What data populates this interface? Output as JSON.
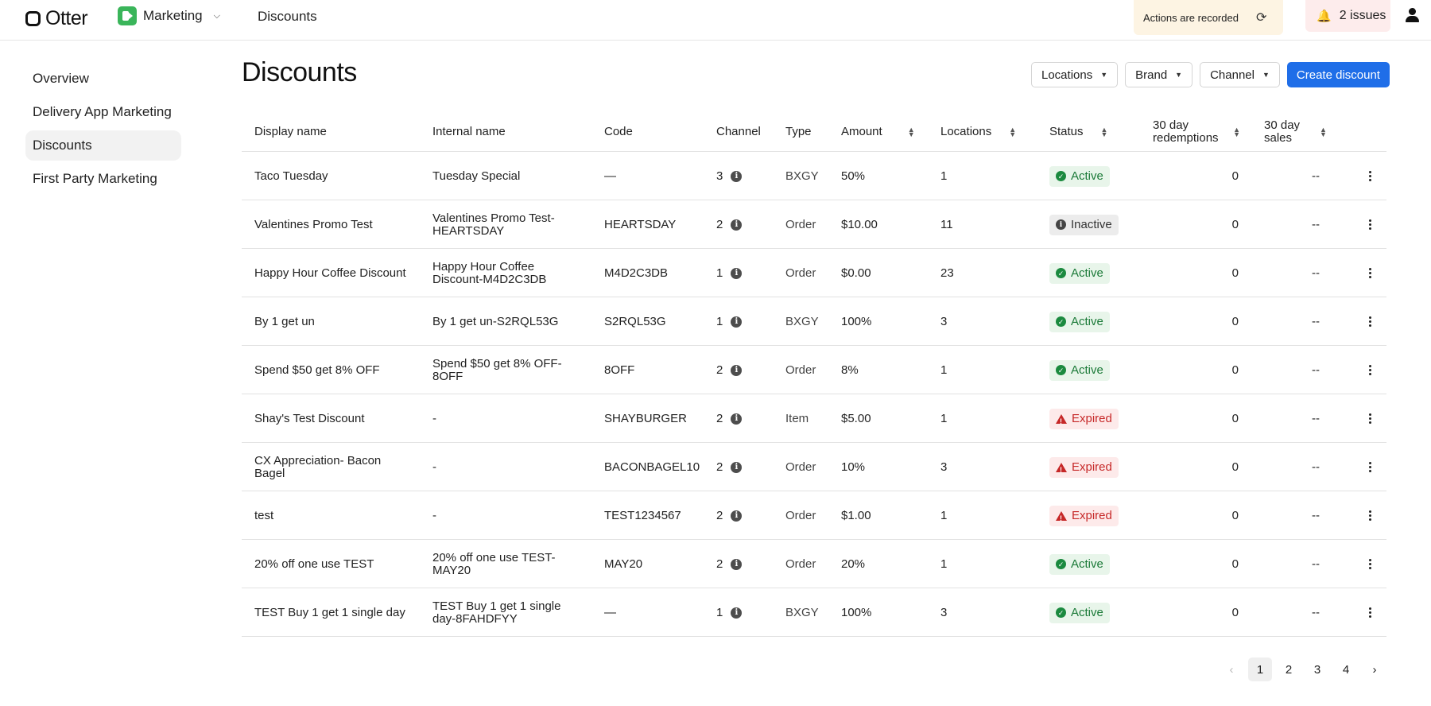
{
  "topbar": {
    "logo_text": "Otter",
    "app_name": "Marketing",
    "page_breadcrumb": "Discounts",
    "recorded_label": "Actions are recorded",
    "issues_label": "2 issues"
  },
  "sidebar": {
    "items": [
      {
        "label": "Overview"
      },
      {
        "label": "Delivery App Marketing"
      },
      {
        "label": "Discounts",
        "active": true
      },
      {
        "label": "First Party Marketing"
      }
    ]
  },
  "main": {
    "title": "Discounts",
    "filters": [
      "Locations",
      "Brand",
      "Channel"
    ],
    "create_label": "Create discount"
  },
  "table": {
    "headers": {
      "display_name": "Display name",
      "internal_name": "Internal name",
      "code": "Code",
      "channel": "Channel",
      "type": "Type",
      "amount": "Amount",
      "locations": "Locations",
      "status": "Status",
      "redemptions": "30 day redemptions",
      "sales": "30 day sales"
    },
    "rows": [
      {
        "display": "Taco Tuesday",
        "internal": "Tuesday Special",
        "code": "—",
        "channel": "3",
        "type": "BXGY",
        "amount": "50%",
        "locations": "1",
        "status": "Active",
        "redemptions": "0",
        "sales": "--"
      },
      {
        "display": "Valentines Promo Test",
        "internal": "Valentines Promo Test-HEARTSDAY",
        "code": "HEARTSDAY",
        "channel": "2",
        "type": "Order",
        "amount": "$10.00",
        "locations": "11",
        "status": "Inactive",
        "redemptions": "0",
        "sales": "--"
      },
      {
        "display": "Happy Hour Coffee Discount",
        "internal": "Happy Hour Coffee Discount-M4D2C3DB",
        "code": "M4D2C3DB",
        "channel": "1",
        "type": "Order",
        "amount": "$0.00",
        "locations": "23",
        "status": "Active",
        "redemptions": "0",
        "sales": "--"
      },
      {
        "display": "By 1 get un",
        "internal": "By 1 get un-S2RQL53G",
        "code": "S2RQL53G",
        "channel": "1",
        "type": "BXGY",
        "amount": "100%",
        "locations": "3",
        "status": "Active",
        "redemptions": "0",
        "sales": "--"
      },
      {
        "display": "Spend $50 get 8% OFF",
        "internal": "Spend $50 get 8% OFF-8OFF",
        "code": "8OFF",
        "channel": "2",
        "type": "Order",
        "amount": "8%",
        "locations": "1",
        "status": "Active",
        "redemptions": "0",
        "sales": "--"
      },
      {
        "display": "Shay's Test Discount",
        "internal": "-",
        "code": "SHAYBURGER",
        "channel": "2",
        "type": "Item",
        "amount": "$5.00",
        "locations": "1",
        "status": "Expired",
        "redemptions": "0",
        "sales": "--"
      },
      {
        "display": "CX Appreciation- Bacon Bagel",
        "internal": "-",
        "code": "BACONBAGEL10",
        "channel": "2",
        "type": "Order",
        "amount": "10%",
        "locations": "3",
        "status": "Expired",
        "redemptions": "0",
        "sales": "--"
      },
      {
        "display": "test",
        "internal": "-",
        "code": "TEST1234567",
        "channel": "2",
        "type": "Order",
        "amount": "$1.00",
        "locations": "1",
        "status": "Expired",
        "redemptions": "0",
        "sales": "--"
      },
      {
        "display": "20% off one use TEST",
        "internal": "20% off one use TEST-MAY20",
        "code": "MAY20",
        "channel": "2",
        "type": "Order",
        "amount": "20%",
        "locations": "1",
        "status": "Active",
        "redemptions": "0",
        "sales": "--"
      },
      {
        "display": "TEST Buy 1 get 1 single day",
        "internal": "TEST Buy 1 get 1 single day-8FAHDFYY",
        "code": "—",
        "channel": "1",
        "type": "BXGY",
        "amount": "100%",
        "locations": "3",
        "status": "Active",
        "redemptions": "0",
        "sales": "--"
      }
    ]
  },
  "pagination": {
    "pages": [
      "1",
      "2",
      "3",
      "4"
    ],
    "current": "1"
  },
  "colors": {
    "primary": "#1f6ee8",
    "active_bg": "#e8f5ea",
    "active_text": "#1b7a38",
    "expired_bg": "#fdeaea",
    "expired_text": "#c62828",
    "inactive_bg": "#ececec"
  },
  "icons": {
    "channel_info": "info-icon",
    "row_menu": "kebab-menu-icon",
    "notifications": "bell-icon",
    "sync": "refresh-icon",
    "account": "user-icon"
  }
}
